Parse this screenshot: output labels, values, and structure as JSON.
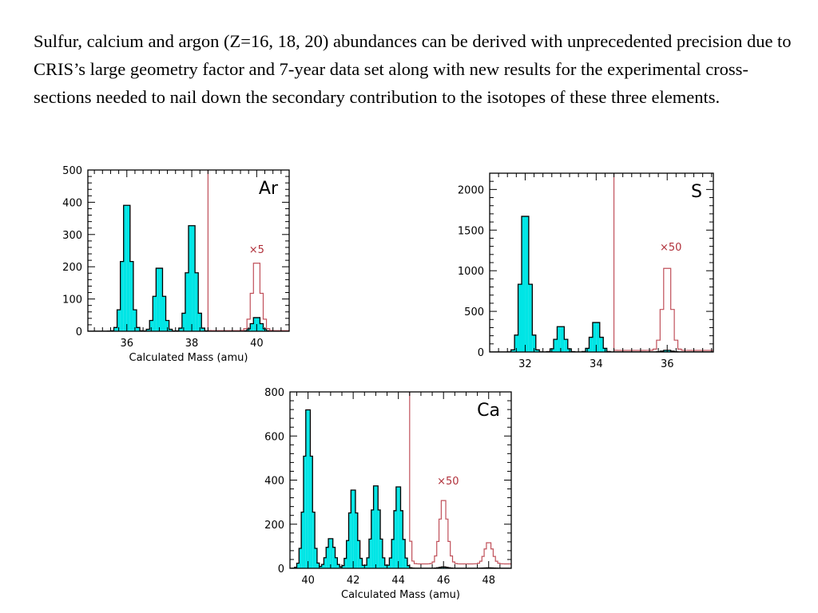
{
  "paragraph": "Sulfur, calcium and argon (Z=16, 18, 20) abundances can be derived with unprecedented precision due to CRIS’s large geometry factor and 7-year data set along with new results for the experimental cross-sections needed to nail down the secondary contribution to the isotopes of these three elements.",
  "colors": {
    "fill": "#00e5e5",
    "outline": "#000000",
    "scaled": "#c0505a",
    "scale_label": "#b0303a"
  },
  "chart_data": [
    {
      "id": "ar",
      "type": "histogram",
      "element_label": "Ar",
      "xlabel": "Calculated Mass (amu)",
      "ylabel": "",
      "xlim": [
        34.8,
        41.0
      ],
      "ylim": [
        0,
        500
      ],
      "xticks": [
        36,
        38,
        40
      ],
      "yticks": [
        0,
        100,
        200,
        300,
        400,
        500
      ],
      "scale_label": "×5",
      "scale_factor": 5,
      "peaks": [
        {
          "center": 36.0,
          "height": 420,
          "width": 0.13
        },
        {
          "center": 37.0,
          "height": 210,
          "width": 0.13
        },
        {
          "center": 38.0,
          "height": 352,
          "width": 0.13
        },
        {
          "center": 40.0,
          "height": 45,
          "width": 0.13
        }
      ],
      "scaled_clip": 500
    },
    {
      "id": "s",
      "type": "histogram",
      "element_label": "S",
      "xlabel": "",
      "ylabel": "",
      "xlim": [
        31.0,
        37.3
      ],
      "ylim": [
        0,
        2200
      ],
      "xticks": [
        32,
        34,
        36
      ],
      "yticks": [
        0,
        500,
        1000,
        1500,
        2000
      ],
      "scale_label": "×50",
      "scale_factor": 50,
      "peaks": [
        {
          "center": 32.0,
          "height": 1820,
          "width": 0.12
        },
        {
          "center": 33.0,
          "height": 340,
          "width": 0.12
        },
        {
          "center": 34.0,
          "height": 395,
          "width": 0.12
        },
        {
          "center": 36.0,
          "height": 22,
          "width": 0.12
        }
      ],
      "scaled_clip": 2200
    },
    {
      "id": "ca",
      "type": "histogram",
      "element_label": "Ca",
      "xlabel": "Calculated Mass (amu)",
      "ylabel": "",
      "xlim": [
        39.2,
        49.0
      ],
      "ylim": [
        0,
        800
      ],
      "xticks": [
        40,
        42,
        44,
        46,
        48
      ],
      "yticks": [
        0,
        200,
        400,
        600,
        800
      ],
      "scale_label": "×50",
      "scale_factor": 50,
      "peaks": [
        {
          "center": 40.0,
          "height": 750,
          "width": 0.17
        },
        {
          "center": 41.0,
          "height": 140,
          "width": 0.17
        },
        {
          "center": 42.0,
          "height": 370,
          "width": 0.17
        },
        {
          "center": 43.0,
          "height": 390,
          "width": 0.17
        },
        {
          "center": 44.0,
          "height": 385,
          "width": 0.17
        },
        {
          "center": 46.0,
          "height": 6,
          "width": 0.17
        },
        {
          "center": 48.0,
          "height": 2,
          "width": 0.17
        }
      ],
      "scaled_clip": 800
    }
  ]
}
